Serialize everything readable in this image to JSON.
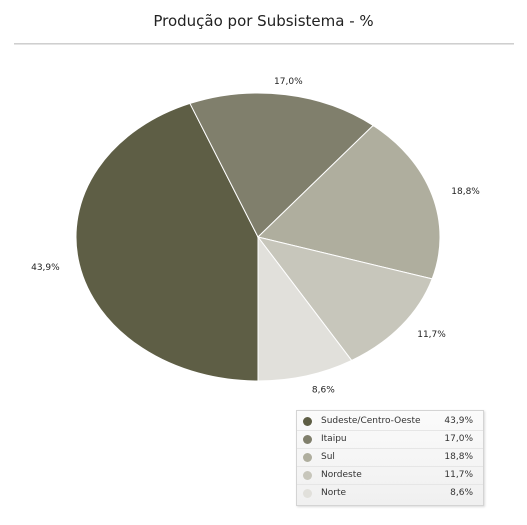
{
  "header": {
    "title": "Produção por Subsistema - %"
  },
  "chart_data": {
    "type": "pie",
    "title": "Produção por Subsistema - %",
    "categories": [
      "Sudeste/Centro-Oeste",
      "Itaipu",
      "Sul",
      "Nordeste",
      "Norte"
    ],
    "values": [
      43.9,
      17.0,
      18.8,
      11.7,
      8.6
    ],
    "value_labels": [
      "43,9%",
      "17,0%",
      "18,8%",
      "11,7%",
      "8,6%"
    ],
    "colors": [
      "#5e5e45",
      "#807f6c",
      "#afae9e",
      "#c7c6bb",
      "#e1e0db"
    ],
    "legend_position": "bottom-right"
  },
  "legend": {
    "items": [
      {
        "label": "Sudeste/Centro-Oeste",
        "value": "43,9%"
      },
      {
        "label": "Itaipu",
        "value": "17,0%"
      },
      {
        "label": "Sul",
        "value": "18,8%"
      },
      {
        "label": "Nordeste",
        "value": "11,7%"
      },
      {
        "label": "Norte",
        "value": "8,6%"
      }
    ]
  }
}
